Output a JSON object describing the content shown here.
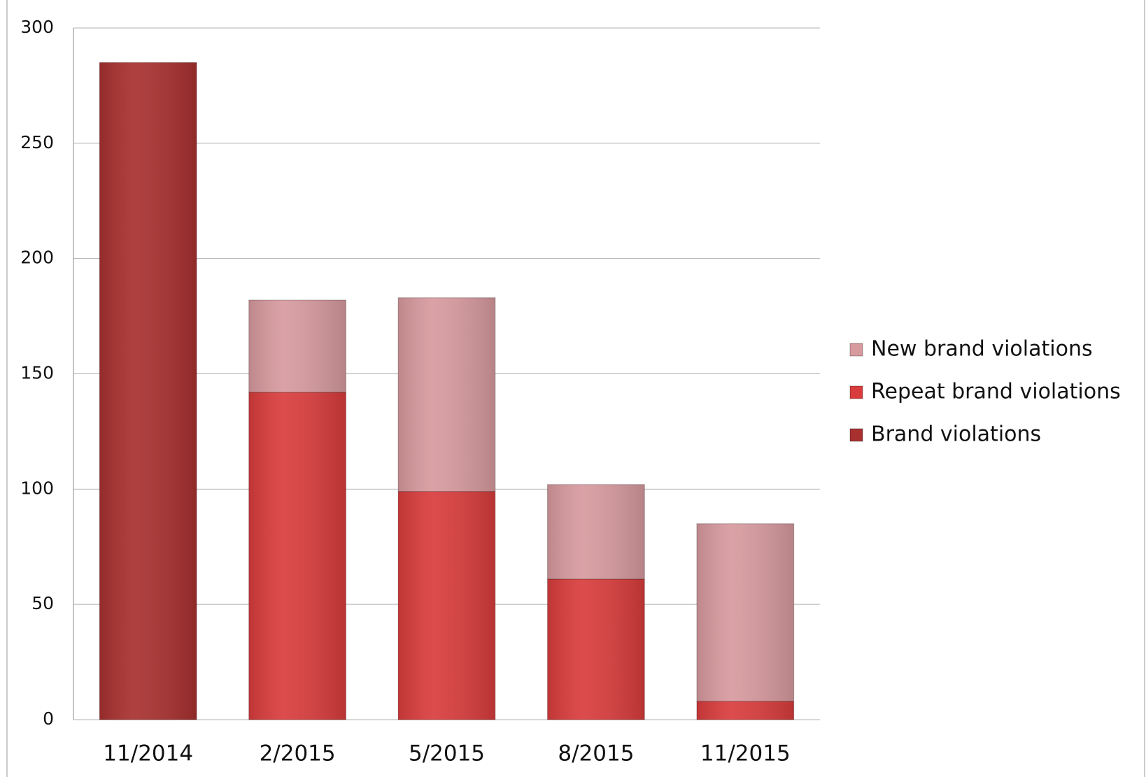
{
  "chart_data": {
    "type": "stacked_bar",
    "categories": [
      "11/2014",
      "2/2015",
      "5/2015",
      "8/2015",
      "11/2015"
    ],
    "series": [
      {
        "name": "Brand violations",
        "color": "#a8302f",
        "values": [
          285,
          null,
          null,
          null,
          null
        ]
      },
      {
        "name": "Repeat brand violations",
        "color": "#d93c3c",
        "values": [
          null,
          142,
          99,
          61,
          8
        ]
      },
      {
        "name": "New brand violations",
        "color": "#d79a9e",
        "values": [
          null,
          40,
          84,
          41,
          77
        ]
      }
    ],
    "ylim": [
      0,
      300
    ],
    "yticks": [
      0,
      50,
      100,
      150,
      200,
      250,
      300
    ],
    "grid": true,
    "legend": "right"
  }
}
